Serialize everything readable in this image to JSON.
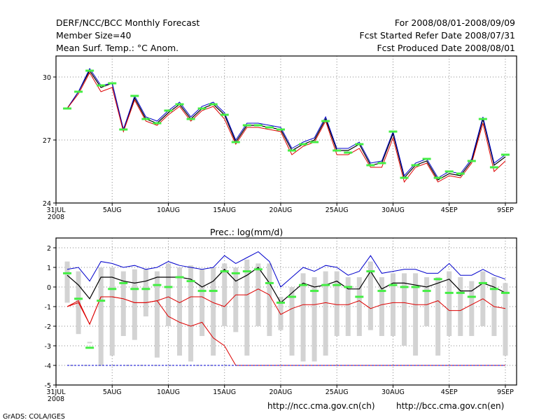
{
  "header": {
    "title": "DERF/NCC/BCC Monthly Forecast",
    "member_size": "Member Size=40",
    "panel1_label": "Mean Surf. Temp.: °C Anom.",
    "forecast_period": "For 2008/08/01-2008/09/09",
    "refer_date": "Fcst Started Refer Date 2008/07/31",
    "produced_date": "Fcst Produced Date 2008/08/01"
  },
  "footer": {
    "grads": "GrADS: COLA/IGES",
    "url_ch": "http://ncc.cma.gov.cn(ch)",
    "url_en": "http://bcc.cma.gov.cn(en)"
  },
  "colors": {
    "mean": "#000000",
    "upper": "#0000cc",
    "lower": "#dd0000",
    "obs": "#44ee44",
    "box": "#d3d3d3",
    "grid": "#888888"
  },
  "chart_data": [
    {
      "type": "line",
      "title": "Mean Surf. Temp.: °C Anom.",
      "xlabel": "",
      "ylabel": "",
      "x_tick_labels": [
        "31JUL",
        "5AUG",
        "10AUG",
        "15AUG",
        "20AUG",
        "25AUG",
        "30AUG",
        "4SEP",
        "9SEP"
      ],
      "x_tick_days": [
        0,
        5,
        10,
        15,
        20,
        25,
        30,
        35,
        40
      ],
      "x_year_label": "2008",
      "ylim": [
        24,
        31
      ],
      "y_ticks": [
        24,
        27,
        30
      ],
      "grid": true,
      "x": [
        1,
        2,
        3,
        4,
        5,
        6,
        7,
        8,
        9,
        10,
        11,
        12,
        13,
        14,
        15,
        16,
        17,
        18,
        19,
        20,
        21,
        22,
        23,
        24,
        25,
        26,
        27,
        28,
        29,
        30,
        31,
        32,
        33,
        34,
        35,
        36,
        37,
        38,
        39,
        40
      ],
      "series": [
        {
          "name": "mean",
          "values": [
            28.5,
            29.3,
            30.3,
            29.5,
            29.7,
            27.5,
            29.0,
            28.0,
            27.8,
            28.3,
            28.7,
            28.0,
            28.5,
            28.7,
            28.2,
            26.9,
            27.7,
            27.7,
            27.6,
            27.5,
            26.5,
            26.8,
            27.0,
            28.0,
            26.5,
            26.5,
            26.8,
            25.8,
            25.9,
            27.3,
            25.2,
            25.8,
            26.0,
            25.1,
            25.4,
            25.3,
            26.0,
            28.0,
            25.8,
            26.2
          ]
        },
        {
          "name": "upper",
          "values": [
            28.5,
            29.3,
            30.4,
            29.6,
            29.7,
            27.5,
            29.1,
            28.1,
            27.9,
            28.4,
            28.8,
            28.1,
            28.6,
            28.8,
            28.3,
            27.0,
            27.8,
            27.8,
            27.7,
            27.6,
            26.6,
            26.9,
            27.1,
            28.1,
            26.6,
            26.6,
            26.9,
            25.9,
            26.0,
            27.4,
            25.3,
            25.9,
            26.1,
            25.2,
            25.5,
            25.4,
            26.1,
            28.1,
            25.9,
            26.3
          ]
        },
        {
          "name": "lower",
          "values": [
            28.5,
            29.2,
            30.2,
            29.3,
            29.5,
            27.4,
            28.9,
            27.9,
            27.7,
            28.2,
            28.6,
            27.9,
            28.4,
            28.6,
            28.0,
            26.8,
            27.6,
            27.6,
            27.5,
            27.4,
            26.3,
            26.7,
            26.9,
            27.9,
            26.3,
            26.3,
            26.6,
            25.7,
            25.7,
            27.1,
            25.0,
            25.7,
            25.9,
            25.0,
            25.3,
            25.2,
            25.9,
            27.8,
            25.5,
            26.0
          ]
        },
        {
          "name": "observed",
          "values": [
            28.5,
            29.3,
            30.3,
            29.6,
            29.7,
            27.5,
            29.1,
            28.0,
            27.8,
            28.4,
            28.7,
            28.0,
            28.5,
            28.7,
            28.2,
            26.9,
            27.7,
            27.7,
            27.6,
            27.5,
            26.5,
            26.8,
            26.9,
            27.9,
            26.5,
            26.4,
            26.8,
            25.8,
            25.9,
            27.4,
            25.2,
            25.8,
            26.1,
            25.2,
            25.5,
            25.4,
            26.0,
            28.0,
            25.7,
            26.3
          ]
        }
      ]
    },
    {
      "type": "line",
      "title": "Prec.: log(mm/d)",
      "xlabel": "",
      "ylabel": "",
      "x_tick_labels": [
        "31JUL",
        "5AUG",
        "10AUG",
        "15AUG",
        "20AUG",
        "25AUG",
        "30AUG",
        "4SEP",
        "9SEP"
      ],
      "x_tick_days": [
        0,
        5,
        10,
        15,
        20,
        25,
        30,
        35,
        40
      ],
      "x_year_label": "2008",
      "ylim": [
        -5,
        2.5
      ],
      "y_ticks": [
        -5,
        -4,
        -3,
        -2,
        -1,
        0,
        1,
        2
      ],
      "grid": true,
      "x": [
        1,
        2,
        3,
        4,
        5,
        6,
        7,
        8,
        9,
        10,
        11,
        12,
        13,
        14,
        15,
        16,
        17,
        18,
        19,
        20,
        21,
        22,
        23,
        24,
        25,
        26,
        27,
        28,
        29,
        30,
        31,
        32,
        33,
        34,
        35,
        36,
        37,
        38,
        39,
        40
      ],
      "series": [
        {
          "name": "upper",
          "values": [
            0.9,
            1.0,
            0.3,
            1.3,
            1.2,
            1.0,
            1.1,
            0.9,
            1.0,
            1.3,
            1.1,
            1.0,
            0.9,
            1.0,
            1.6,
            1.2,
            1.5,
            1.8,
            1.3,
            0.0,
            0.5,
            1.0,
            0.8,
            1.1,
            1.0,
            0.6,
            0.8,
            1.6,
            0.7,
            0.8,
            0.9,
            0.9,
            0.7,
            0.7,
            1.2,
            0.6,
            0.6,
            0.9,
            0.6,
            0.4
          ]
        },
        {
          "name": "mean",
          "values": [
            0.6,
            0.1,
            -0.6,
            0.5,
            0.5,
            0.3,
            0.2,
            0.3,
            0.5,
            0.5,
            0.5,
            0.4,
            0.0,
            0.3,
            0.9,
            0.3,
            0.6,
            1.0,
            0.2,
            -0.8,
            -0.3,
            0.2,
            0.0,
            0.1,
            0.3,
            -0.1,
            -0.1,
            0.8,
            -0.1,
            0.2,
            0.2,
            0.1,
            0.0,
            0.2,
            0.4,
            -0.2,
            -0.2,
            0.2,
            0.0,
            -0.3
          ]
        },
        {
          "name": "lower",
          "values": [
            -1.0,
            -0.7,
            -1.9,
            -0.5,
            -0.5,
            -0.6,
            -0.8,
            -0.8,
            -0.7,
            -1.5,
            -1.8,
            -2.0,
            -1.8,
            -2.6,
            -3.0,
            -4.0,
            -4.0,
            -4.0,
            -4.0,
            -4.0,
            -4.0,
            -4.0,
            -4.0,
            -4.0,
            -4.0,
            -4.0,
            -4.0,
            -4.0,
            -4.0,
            -4.0,
            -4.0,
            -4.0,
            -4.0,
            -4.0,
            -4.0,
            -4.0,
            -4.0,
            -4.0,
            -4.0,
            -4.0
          ]
        },
        {
          "name": "lower-2",
          "values": [
            -1.0,
            -0.8,
            -1.9,
            -0.5,
            -0.5,
            -0.6,
            -0.8,
            -0.8,
            -0.7,
            -0.5,
            -0.8,
            -0.5,
            -0.5,
            -0.8,
            -1.0,
            -0.4,
            -0.4,
            -0.1,
            -0.4,
            -1.4,
            -1.1,
            -0.9,
            -0.9,
            -0.8,
            -0.9,
            -0.9,
            -0.7,
            -1.1,
            -0.9,
            -0.8,
            -0.8,
            -0.9,
            -0.9,
            -0.7,
            -1.2,
            -1.2,
            -0.9,
            -0.6,
            -1.0,
            -1.1
          ]
        },
        {
          "name": "floor",
          "values": [
            -4,
            -4,
            -4,
            -4,
            -4,
            -4,
            -4,
            -4,
            -4,
            -4,
            -4,
            -4,
            -4,
            -4,
            -4,
            -4,
            -4,
            -4,
            -4,
            -4,
            -4,
            -4,
            -4,
            -4,
            -4,
            -4,
            -4,
            -4,
            -4,
            -4,
            -4,
            -4,
            -4,
            -4,
            -4,
            -4,
            -4,
            -4,
            -4,
            -4
          ]
        },
        {
          "name": "observed",
          "values": [
            0.7,
            -0.6,
            -3.1,
            -0.7,
            -0.1,
            0.2,
            -0.1,
            -0.1,
            0.1,
            0.0,
            0.5,
            0.3,
            -0.2,
            -0.2,
            0.8,
            0.7,
            0.8,
            0.9,
            0.2,
            -0.8,
            -0.5,
            0.1,
            -0.2,
            0.1,
            0.1,
            0.0,
            -0.5,
            0.8,
            -0.2,
            0.1,
            0.0,
            0.0,
            -0.2,
            0.4,
            -0.3,
            -0.3,
            -0.5,
            0.2,
            -0.1,
            -0.3
          ]
        }
      ],
      "boxes": {
        "low": [
          -0.8,
          -2.4,
          -2.8,
          -4.0,
          -3.5,
          -2.5,
          -2.7,
          -1.5,
          -3.6,
          -2.0,
          -3.5,
          -3.8,
          -2.5,
          -3.5,
          -2.0,
          -2.3,
          -3.5,
          -2.0,
          -2.5,
          -2.2,
          -3.5,
          -3.8,
          -3.8,
          -3.5,
          -2.5,
          -2.5,
          -2.5,
          -2.2,
          -2.5,
          -2.5,
          -3.0,
          -3.5,
          -2.0,
          -3.5,
          -2.5,
          -2.5,
          -2.5,
          -2.0,
          -2.5,
          -3.5
        ],
        "high": [
          1.3,
          0.8,
          -2.8,
          1.0,
          1.0,
          0.8,
          0.9,
          0.9,
          0.8,
          1.2,
          1.0,
          1.1,
          0.9,
          1.0,
          1.2,
          1.0,
          1.4,
          1.2,
          1.2,
          -0.5,
          0.0,
          0.7,
          0.5,
          0.8,
          0.8,
          0.5,
          0.5,
          1.3,
          0.5,
          0.7,
          0.7,
          0.7,
          0.5,
          0.5,
          0.8,
          0.5,
          0.3,
          0.8,
          0.5,
          0.2
        ]
      }
    }
  ]
}
